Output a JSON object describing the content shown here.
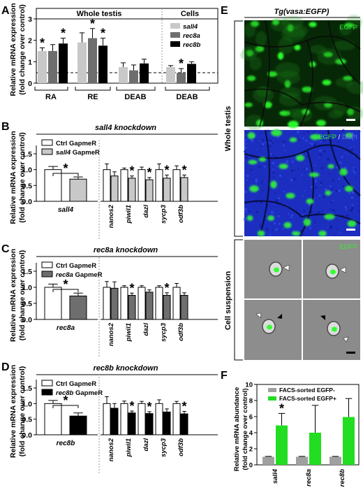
{
  "panels": {
    "A": {
      "letter": "A",
      "ylabel": [
        "Relative mRNA expression",
        "(fold change over control)"
      ],
      "headers": [
        "Whole testis",
        "Cells"
      ],
      "legend": [
        {
          "name": "sall4",
          "color": "#c8c8c8"
        },
        {
          "name": "rec8a",
          "color": "#6e6e6e"
        },
        {
          "name": "rec8b",
          "color": "#000000"
        }
      ],
      "yticks": [
        "0",
        "1",
        "2",
        "3"
      ],
      "groups": [
        "RA",
        "RE",
        "DEAB",
        "DEAB"
      ]
    },
    "B": {
      "letter": "B",
      "title": "sall4 knockdown",
      "ylabel": [
        "Relative mRNA expression",
        "(fold change over control)"
      ],
      "legend": [
        {
          "name": "Ctrl GapmeR",
          "color": "#ffffff"
        },
        {
          "name": "sall4 GapmeR",
          "color": "#c8c8c8"
        }
      ],
      "yticks": [
        "0.0",
        "0.5",
        "1.0",
        "1.5"
      ],
      "xlabel": "sall4",
      "genes": [
        "nanos2",
        "piwil1",
        "dazl",
        "sycp3",
        "odf3b"
      ]
    },
    "C": {
      "letter": "C",
      "title": "rec8a knockdown",
      "ylabel": [
        "Relative mRNA expression",
        "(fold change over control)"
      ],
      "legend": [
        {
          "name": "Ctrl GapmeR",
          "color": "#ffffff"
        },
        {
          "name": "rec8a GapmeR",
          "color": "#6e6e6e"
        }
      ],
      "yticks": [
        "0.0",
        "0.5",
        "1.0",
        "1.5"
      ],
      "xlabel": "rec8a",
      "genes": [
        "nanos2",
        "piwil1",
        "dazl",
        "sycp3",
        "odf3b"
      ]
    },
    "D": {
      "letter": "D",
      "title": "rec8b knockdown",
      "ylabel": [
        "Relative mRNA expression",
        "(fold change over control)"
      ],
      "legend": [
        {
          "name": "Ctrl GapmeR",
          "color": "#ffffff"
        },
        {
          "name": "rec8b GapmeR",
          "color": "#000000"
        }
      ],
      "yticks": [
        "0.0",
        "0.5",
        "1.0",
        "1.5"
      ],
      "xlabel": "rec8b",
      "genes": [
        "nanos2",
        "piwil1",
        "dazl",
        "sycp3",
        "odf3b"
      ]
    },
    "E": {
      "letter": "E",
      "title": "Tg(vasa:EGFP)",
      "side1": "Whole testis",
      "side2": "Cell suspension",
      "label_egfp": "EGFP",
      "label_dapi": "DAPI",
      "slash": " / "
    },
    "F": {
      "letter": "F",
      "ylabel": [
        "Relative mRNA abundance",
        "(fold change over control)"
      ],
      "legend": [
        {
          "name": "FACS-sorted EGFP-",
          "color": "#a0a0a0"
        },
        {
          "name": "FACS-sorted EGFP+",
          "color": "#22dd22"
        }
      ],
      "yticks": [
        "0",
        "2",
        "4",
        "6",
        "8",
        "10"
      ],
      "genes": [
        "sall4",
        "rec8a",
        "rec8b"
      ]
    }
  },
  "star": "*",
  "chart_data": [
    {
      "type": "bar",
      "panel": "A",
      "ylim": [
        0,
        3
      ],
      "reference_line": 1,
      "categories": [
        "RA",
        "RE",
        "DEAB (whole testis)",
        "DEAB (cells)"
      ],
      "series": [
        {
          "name": "sall4",
          "values": [
            1.5,
            1.9,
            0.75,
            0.75
          ],
          "errors": [
            0.15,
            0.45,
            0.2,
            0.07
          ],
          "significant": [
            true,
            false,
            false,
            false
          ]
        },
        {
          "name": "rec8a",
          "values": [
            1.5,
            2.1,
            0.6,
            0.48
          ],
          "errors": [
            0.3,
            0.45,
            0.25,
            0.2
          ],
          "significant": [
            false,
            true,
            false,
            true
          ]
        },
        {
          "name": "rec8b",
          "values": [
            1.85,
            1.75,
            0.92,
            0.9
          ],
          "errors": [
            0.25,
            0.35,
            0.2,
            0.1
          ],
          "significant": [
            true,
            true,
            false,
            false
          ]
        }
      ]
    },
    {
      "type": "bar",
      "panel": "B",
      "ylim": [
        0,
        1.5
      ],
      "categories": [
        "sall4",
        "nanos2",
        "piwil1",
        "dazl",
        "sycp3",
        "odf3b"
      ],
      "series": [
        {
          "name": "Ctrl GapmeR",
          "values": [
            1.0,
            1.0,
            1.0,
            1.0,
            1.0,
            1.0
          ],
          "errors": [
            0.1,
            0.18,
            0.05,
            0.08,
            0.18,
            0.12
          ]
        },
        {
          "name": "sall4 GapmeR",
          "values": [
            0.7,
            0.8,
            0.73,
            0.68,
            0.73,
            0.75
          ],
          "errors": [
            0.07,
            0.13,
            0.07,
            0.07,
            0.1,
            0.08
          ],
          "significant": [
            true,
            false,
            true,
            true,
            true,
            true
          ]
        }
      ]
    },
    {
      "type": "bar",
      "panel": "C",
      "ylim": [
        0,
        1.5
      ],
      "categories": [
        "rec8a",
        "nanos2",
        "piwil1",
        "dazl",
        "sycp3",
        "odf3b"
      ],
      "series": [
        {
          "name": "Ctrl GapmeR",
          "values": [
            1.0,
            1.0,
            1.0,
            1.0,
            1.0,
            1.0
          ],
          "errors": [
            0.1,
            0.18,
            0.05,
            0.05,
            0.05,
            0.12
          ]
        },
        {
          "name": "rec8a GapmeR",
          "values": [
            0.73,
            0.97,
            0.75,
            0.85,
            0.75,
            0.75
          ],
          "errors": [
            0.09,
            0.2,
            0.07,
            0.07,
            0.08,
            0.08
          ],
          "significant": [
            true,
            false,
            true,
            false,
            true,
            false
          ]
        }
      ]
    },
    {
      "type": "bar",
      "panel": "D",
      "ylim": [
        0,
        1.5
      ],
      "categories": [
        "rec8b",
        "nanos2",
        "piwil1",
        "dazl",
        "sycp3",
        "odf3b"
      ],
      "series": [
        {
          "name": "Ctrl GapmeR",
          "values": [
            1.0,
            1.0,
            1.0,
            1.0,
            1.0,
            1.0
          ],
          "errors": [
            0.1,
            0.22,
            0.08,
            0.07,
            0.12,
            0.07
          ]
        },
        {
          "name": "rec8b GapmeR",
          "values": [
            0.6,
            0.85,
            0.7,
            0.68,
            0.73,
            0.67
          ],
          "errors": [
            0.1,
            0.15,
            0.06,
            0.06,
            0.1,
            0.08
          ],
          "significant": [
            true,
            false,
            true,
            true,
            false,
            true
          ]
        }
      ]
    },
    {
      "type": "bar",
      "panel": "F",
      "ylim": [
        0,
        10
      ],
      "categories": [
        "sall4",
        "rec8a",
        "rec8b"
      ],
      "series": [
        {
          "name": "FACS-sorted EGFP-",
          "values": [
            1.0,
            1.0,
            1.0
          ],
          "errors": [
            0.05,
            0.05,
            0.05
          ]
        },
        {
          "name": "FACS-sorted EGFP+",
          "values": [
            4.9,
            4.0,
            5.95
          ],
          "errors": [
            1.5,
            3.4,
            2.3
          ],
          "significant": [
            true,
            false,
            false
          ]
        }
      ]
    }
  ]
}
